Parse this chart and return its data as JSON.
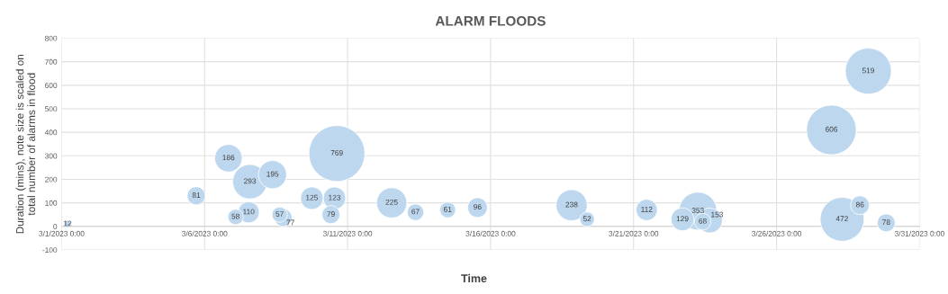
{
  "chart_data": {
    "type": "bubble",
    "title": "ALARM FLOODS",
    "xlabel": "Time",
    "ylabel": "Duration (mins), note size is scaled on\ntotal number of alarms in flood",
    "x": [
      "2023-03-01T05:00",
      "2023-03-05T17:00",
      "2023-03-06T20:00",
      "2023-03-07T14:00",
      "2023-03-08T09:00",
      "2023-03-07T02:00",
      "2023-03-07T13:00",
      "2023-03-08T15:00",
      "2023-03-08T18:00",
      "2023-03-09T18:00",
      "2023-03-10T13:00",
      "2023-03-10T10:00",
      "2023-03-10T15:00",
      "2023-03-12T13:00",
      "2023-03-13T09:00",
      "2023-03-14T12:00",
      "2023-03-15T13:00",
      "2023-03-18T20:00",
      "2023-03-19T09:00",
      "2023-03-21T11:00",
      "2023-03-22T17:00",
      "2023-03-23T06:00",
      "2023-03-23T10:00",
      "2023-03-23T16:00",
      "2023-03-27T22:00",
      "2023-03-29T05:00",
      "2023-03-28T07:00",
      "2023-03-28T22:00",
      "2023-03-29T20:00"
    ],
    "values": [
      10,
      130,
      290,
      190,
      220,
      40,
      60,
      50,
      37,
      120,
      120,
      50,
      310,
      100,
      60,
      70,
      80,
      90,
      30,
      70,
      30,
      65,
      20,
      25,
      410,
      660,
      30,
      90,
      15
    ],
    "sizes": [
      12,
      81,
      186,
      293,
      195,
      58,
      110,
      57,
      77,
      125,
      123,
      79,
      769,
      225,
      67,
      61,
      96,
      238,
      52,
      112,
      129,
      353,
      68,
      153,
      606,
      519,
      472,
      86,
      78
    ],
    "value_labels": [
      "12",
      "81",
      "186",
      "293",
      "195",
      "58",
      "110",
      "57",
      "77",
      "125",
      "123",
      "79",
      "769",
      "225",
      "67",
      "61",
      "96",
      "238",
      "52",
      "112",
      "129",
      "353",
      "68",
      "153",
      "606",
      "519",
      "472",
      "86",
      "78"
    ],
    "color": "#bdd7ee",
    "xlim": [
      "2023-03-01",
      "2023-03-31"
    ],
    "xticks": [
      {
        "value": "2023-03-01",
        "label": "3/1/2023 0:00"
      },
      {
        "value": "2023-03-06",
        "label": "3/6/2023 0:00"
      },
      {
        "value": "2023-03-11",
        "label": "3/11/2023 0:00"
      },
      {
        "value": "2023-03-16",
        "label": "3/16/2023 0:00"
      },
      {
        "value": "2023-03-21",
        "label": "3/21/2023 0:00"
      },
      {
        "value": "2023-03-26",
        "label": "3/26/2023 0:00"
      },
      {
        "value": "2023-03-31",
        "label": "3/31/2023 0:00"
      }
    ],
    "ylim": [
      -100,
      800
    ],
    "yticks": [
      -100,
      0,
      100,
      200,
      300,
      400,
      500,
      600,
      700,
      800
    ],
    "grid": true
  }
}
